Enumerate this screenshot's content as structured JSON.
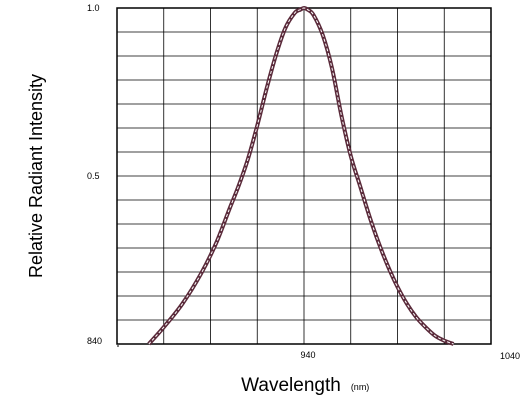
{
  "chart_data": {
    "type": "line",
    "xlabel": "Wavelength",
    "xlabel_unit": "(nm)",
    "ylabel": "Relative Radiant Intensity",
    "xlim": [
      840,
      1040
    ],
    "ylim": [
      0,
      1.0
    ],
    "x_tick_labels": [
      "840",
      "940",
      "1040"
    ],
    "y_tick_labels": [
      "0.5",
      "1.0"
    ],
    "grid": true,
    "grid_columns": 8,
    "grid_rows": 14,
    "series": [
      {
        "color": "#5a2a3a",
        "x": [
          857,
          865,
          875,
          885,
          893,
          900,
          905,
          910,
          915,
          920,
          925,
          930,
          935,
          938,
          940,
          942,
          945,
          950,
          955,
          960,
          965,
          970,
          975,
          980,
          985,
          990,
          995,
          1000,
          1005,
          1010,
          1015,
          1020
        ],
        "y": [
          0.0,
          0.05,
          0.12,
          0.21,
          0.3,
          0.4,
          0.47,
          0.55,
          0.65,
          0.76,
          0.86,
          0.94,
          0.985,
          0.995,
          1.0,
          0.995,
          0.98,
          0.92,
          0.82,
          0.68,
          0.56,
          0.47,
          0.38,
          0.3,
          0.23,
          0.17,
          0.12,
          0.08,
          0.05,
          0.025,
          0.01,
          0.0
        ]
      }
    ]
  }
}
